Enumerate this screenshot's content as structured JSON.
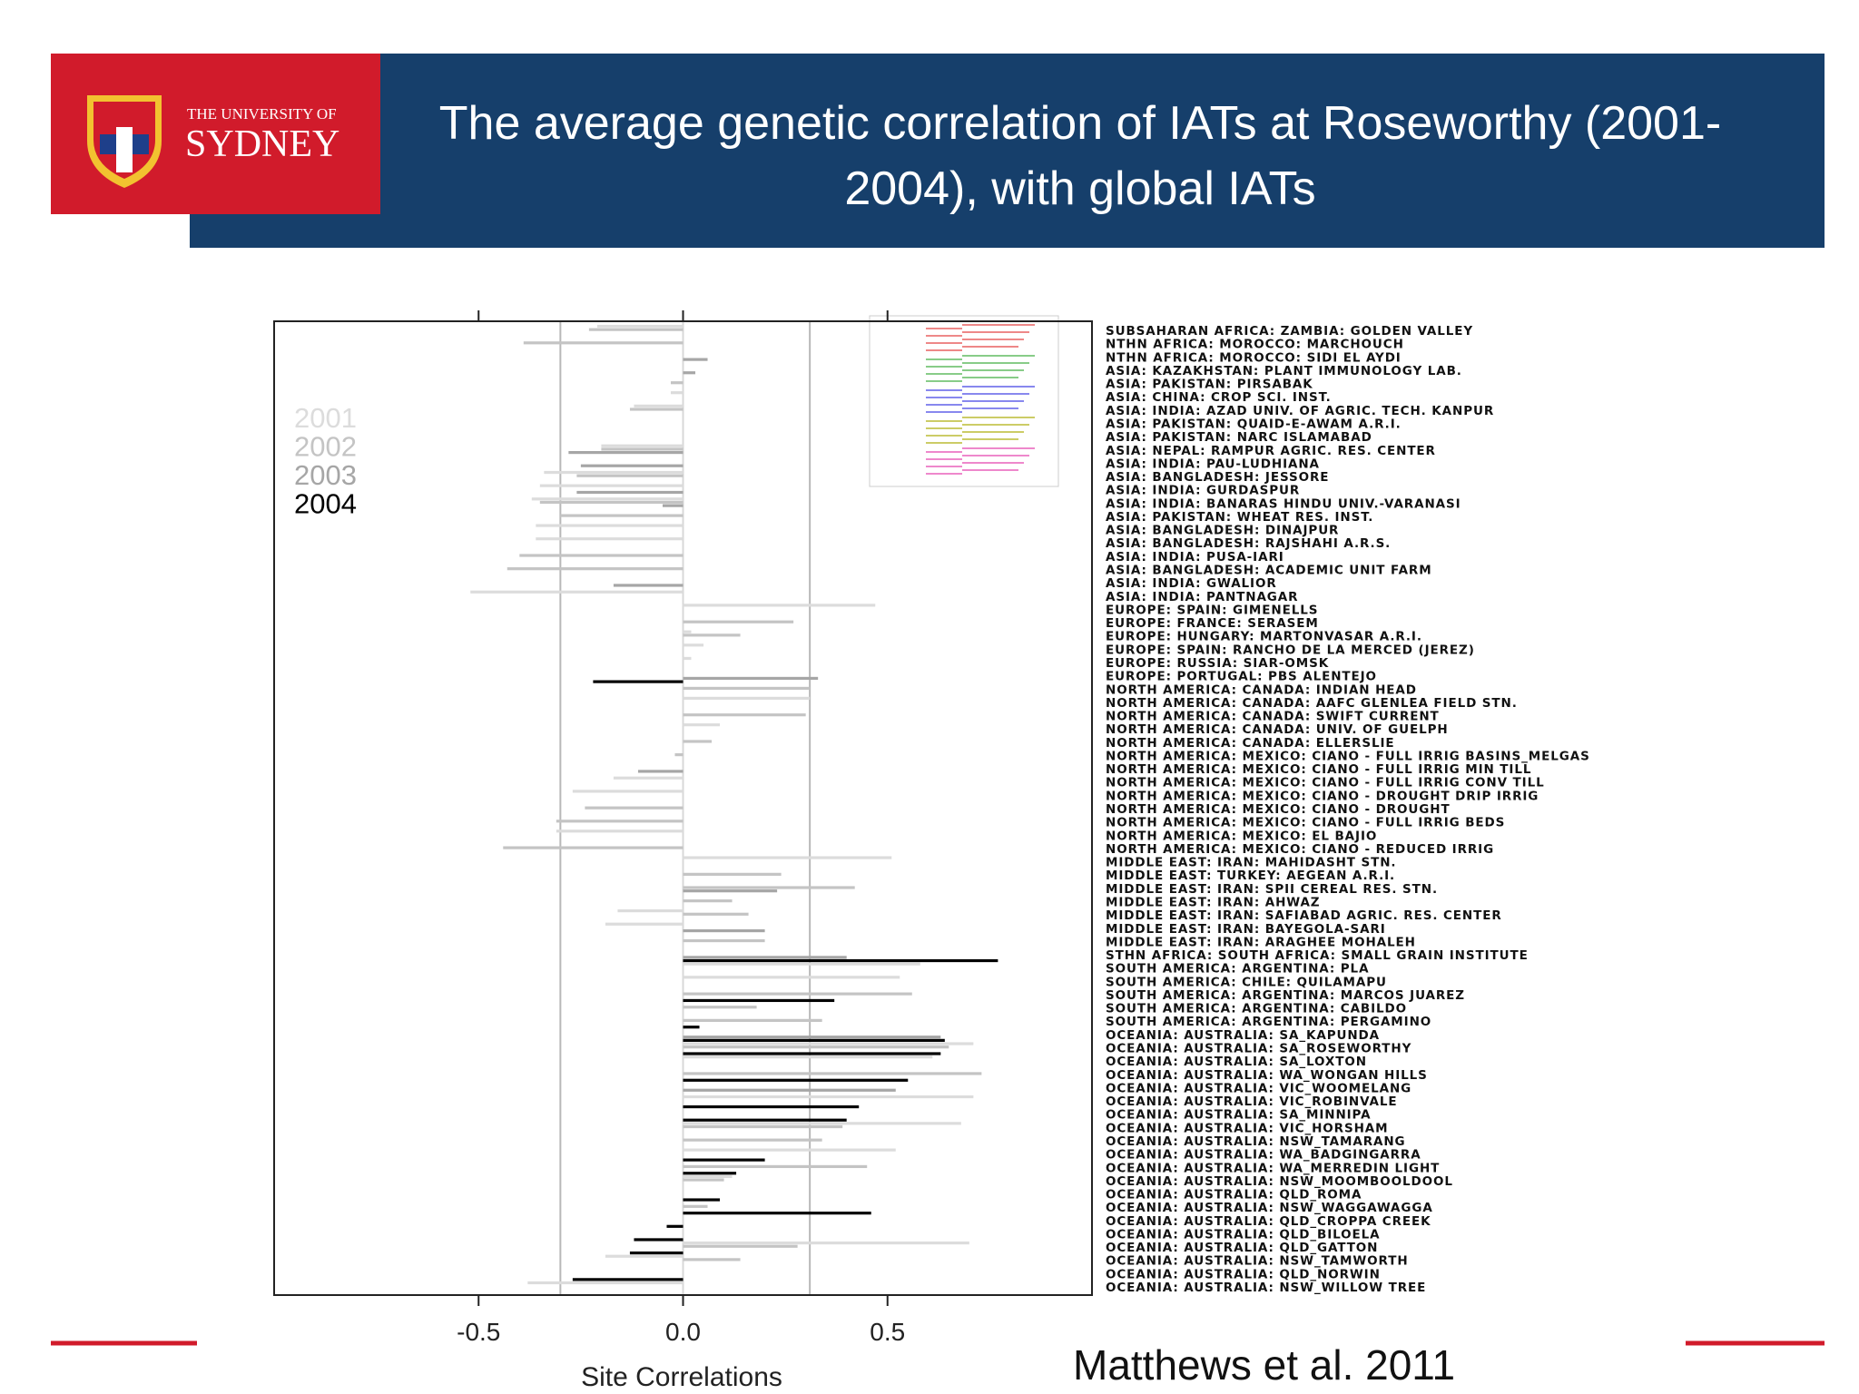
{
  "header": {
    "logo_line1": "THE UNIVERSITY OF",
    "logo_line2": "SYDNEY"
  },
  "citation": "Matthews et al. 2011",
  "chart_data": {
    "type": "hbar",
    "title": "The average genetic correlation of IATs at Roseworthy (2001-2004), with global IATs",
    "xlabel": "Site Correlations",
    "categories": [
      "SUBSAHARAN AFRICA: ZAMBIA: GOLDEN VALLEY",
      "NTHN AFRICA: MOROCCO: MARCHOUCH",
      "NTHN AFRICA: MOROCCO: SIDI EL AYDI",
      "ASIA: KAZAKHSTAN: PLANT IMMUNOLOGY LAB.",
      "ASIA: PAKISTAN: PIRSABAK",
      "ASIA: CHINA: CROP SCI. INST.",
      "ASIA: INDIA: AZAD UNIV. OF AGRIC. TECH. KANPUR",
      "ASIA: PAKISTAN: QUAID-E-AWAM A.R.I.",
      "ASIA: PAKISTAN: NARC ISLAMABAD",
      "ASIA: NEPAL: RAMPUR AGRIC. RES. CENTER",
      "ASIA: INDIA: PAU-LUDHIANA",
      "ASIA: BANGLADESH: JESSORE",
      "ASIA: INDIA: GURDASPUR",
      "ASIA: INDIA: BANARAS HINDU UNIV.-VARANASI",
      "ASIA: PAKISTAN: WHEAT RES. INST.",
      "ASIA: BANGLADESH: DINAJPUR",
      "ASIA: BANGLADESH: RAJSHAHI A.R.S.",
      "ASIA: INDIA: PUSA-IARI",
      "ASIA: BANGLADESH: ACADEMIC UNIT FARM",
      "ASIA: INDIA: GWALIOR",
      "ASIA: INDIA: PANTNAGAR",
      "EUROPE: SPAIN: GIMENELLS",
      "EUROPE: FRANCE: SERASEM",
      "EUROPE: HUNGARY: MARTONVASAR A.R.I.",
      "EUROPE: SPAIN: RANCHO DE LA MERCED (JEREZ)",
      "EUROPE: RUSSIA: SIAR-OMSK",
      "EUROPE: PORTUGAL: PBS ALENTEJO",
      "NORTH AMERICA: CANADA: INDIAN HEAD",
      "NORTH AMERICA: CANADA: AAFC GLENLEA FIELD STN.",
      "NORTH AMERICA: CANADA: SWIFT CURRENT",
      "NORTH AMERICA: CANADA: UNIV. OF GUELPH",
      "NORTH AMERICA: CANADA: ELLERSLIE",
      "NORTH AMERICA: MEXICO: CIANO - FULL IRRIG BASINS_MELGAS",
      "NORTH AMERICA: MEXICO: CIANO - FULL IRRIG MIN TILL",
      "NORTH AMERICA: MEXICO: CIANO - FULL IRRIG CONV TILL",
      "NORTH AMERICA: MEXICO: CIANO - DROUGHT DRIP IRRIG",
      "NORTH AMERICA: MEXICO: CIANO - DROUGHT",
      "NORTH AMERICA: MEXICO: CIANO - FULL IRRIG BEDS",
      "NORTH AMERICA: MEXICO: EL BAJIO",
      "NORTH AMERICA: MEXICO: CIANO - REDUCED IRRIG",
      "MIDDLE EAST: IRAN: MAHIDASHT STN.",
      "MIDDLE EAST: TURKEY: AEGEAN A.R.I.",
      "MIDDLE EAST: IRAN: SPII CEREAL RES. STN.",
      "MIDDLE EAST: IRAN: AHWAZ",
      "MIDDLE EAST: IRAN: SAFIABAD AGRIC. RES. CENTER",
      "MIDDLE EAST: IRAN: BAYEGOLA-SARI",
      "MIDDLE EAST: IRAN: ARAGHEE MOHALEH",
      "STHN AFRICA: SOUTH AFRICA: SMALL GRAIN INSTITUTE",
      "SOUTH AMERICA: ARGENTINA: PLA",
      "SOUTH AMERICA: CHILE: QUILAMAPU",
      "SOUTH AMERICA: ARGENTINA: MARCOS JUAREZ",
      "SOUTH AMERICA: ARGENTINA: CABILDO",
      "SOUTH AMERICA: ARGENTINA: PERGAMINO",
      "OCEANIA: AUSTRALIA: SA_KAPUNDA",
      "OCEANIA: AUSTRALIA: SA_ROSEWORTHY",
      "OCEANIA: AUSTRALIA: SA_LOXTON",
      "OCEANIA: AUSTRALIA: WA_WONGAN HILLS",
      "OCEANIA: AUSTRALIA: VIC_WOOMELANG",
      "OCEANIA: AUSTRALIA: VIC_ROBINVALE",
      "OCEANIA: AUSTRALIA: SA_MINNIPA",
      "OCEANIA: AUSTRALIA: VIC_HORSHAM",
      "OCEANIA: AUSTRALIA: NSW_TAMARANG",
      "OCEANIA: AUSTRALIA: WA_BADGINGARRA",
      "OCEANIA: AUSTRALIA: WA_MERREDIN LIGHT",
      "OCEANIA: AUSTRALIA: NSW_MOOMBOOLDOOL",
      "OCEANIA: AUSTRALIA: QLD_ROMA",
      "OCEANIA: AUSTRALIA: NSW_WAGGAWAGGA",
      "OCEANIA: AUSTRALIA: QLD_CROPPA CREEK",
      "OCEANIA: AUSTRALIA: QLD_BILOELA",
      "OCEANIA: AUSTRALIA: QLD_GATTON",
      "OCEANIA: AUSTRALIA: NSW_TAMWORTH",
      "OCEANIA: AUSTRALIA: QLD_NORWIN",
      "OCEANIA: AUSTRALIA: NSW_WILLOW TREE"
    ],
    "series": [
      {
        "name": "2001",
        "color": "#dcdcdc",
        "values": [
          -0.21,
          null,
          null,
          null,
          null,
          -0.03,
          -0.12,
          null,
          null,
          -0.2,
          null,
          -0.34,
          -0.35,
          -0.37,
          null,
          -0.36,
          -0.36,
          null,
          null,
          null,
          -0.52,
          0.47,
          null,
          0.02,
          0.05,
          0.02,
          null,
          null,
          0.31,
          null,
          0.09,
          null,
          null,
          null,
          -0.17,
          -0.27,
          null,
          null,
          -0.31,
          null,
          0.51,
          null,
          null,
          null,
          -0.16,
          -0.19,
          null,
          null,
          0.58,
          0.53,
          null,
          null,
          null,
          null,
          0.71,
          0.61,
          null,
          null,
          0.71,
          null,
          0.68,
          null,
          0.52,
          null,
          0.12,
          null,
          null,
          null,
          null,
          0.7,
          -0.19,
          null,
          -0.38
        ]
      },
      {
        "name": "2002",
        "color": "#c4c4c4",
        "values": [
          -0.23,
          -0.39,
          null,
          null,
          -0.03,
          null,
          -0.13,
          null,
          null,
          -0.2,
          null,
          -0.26,
          null,
          -0.35,
          -0.3,
          null,
          null,
          -0.4,
          -0.43,
          null,
          null,
          null,
          0.27,
          0.14,
          null,
          null,
          null,
          0.31,
          null,
          0.3,
          null,
          0.07,
          -0.02,
          null,
          null,
          null,
          -0.24,
          -0.31,
          null,
          -0.44,
          null,
          0.24,
          0.42,
          0.12,
          0.16,
          null,
          0.2,
          null,
          null,
          null,
          0.56,
          0.18,
          0.34,
          null,
          0.65,
          null,
          0.73,
          null,
          null,
          null,
          0.39,
          0.34,
          null,
          0.45,
          0.1,
          null,
          0.06,
          null,
          null,
          0.28,
          0.14,
          null,
          null
        ]
      },
      {
        "name": "2003",
        "color": "#a6a6a6",
        "values": [
          null,
          null,
          0.06,
          0.03,
          null,
          null,
          null,
          null,
          null,
          -0.28,
          -0.25,
          null,
          -0.26,
          -0.05,
          null,
          null,
          null,
          null,
          null,
          -0.17,
          null,
          null,
          null,
          null,
          null,
          null,
          0.33,
          null,
          null,
          null,
          null,
          null,
          null,
          -0.11,
          null,
          null,
          null,
          null,
          null,
          null,
          null,
          null,
          0.23,
          null,
          null,
          0.2,
          null,
          0.4,
          null,
          null,
          null,
          null,
          null,
          0.63,
          null,
          null,
          null,
          0.52,
          null,
          null,
          null,
          null,
          null,
          null,
          null,
          null,
          null,
          null,
          null,
          null,
          null,
          null,
          null
        ]
      },
      {
        "name": "2004",
        "color": "#000000",
        "values": [
          null,
          null,
          null,
          null,
          null,
          null,
          null,
          null,
          null,
          null,
          null,
          null,
          null,
          null,
          null,
          null,
          null,
          null,
          null,
          null,
          null,
          null,
          null,
          null,
          null,
          null,
          -0.22,
          null,
          null,
          null,
          null,
          null,
          null,
          null,
          null,
          null,
          null,
          null,
          null,
          null,
          null,
          null,
          null,
          null,
          null,
          null,
          null,
          0.77,
          null,
          null,
          0.37,
          null,
          0.04,
          0.64,
          0.63,
          null,
          0.55,
          null,
          0.43,
          0.4,
          null,
          null,
          0.2,
          0.13,
          null,
          0.09,
          0.46,
          -0.04,
          -0.12,
          -0.13,
          null,
          -0.27,
          null
        ]
      }
    ],
    "xlim": [
      -1,
      1
    ],
    "xticks": [
      -0.5,
      {
        "value": 0,
        "label": "0.0"
      },
      0.5
    ],
    "reference_lines": [
      -0.3,
      0.31
    ]
  }
}
